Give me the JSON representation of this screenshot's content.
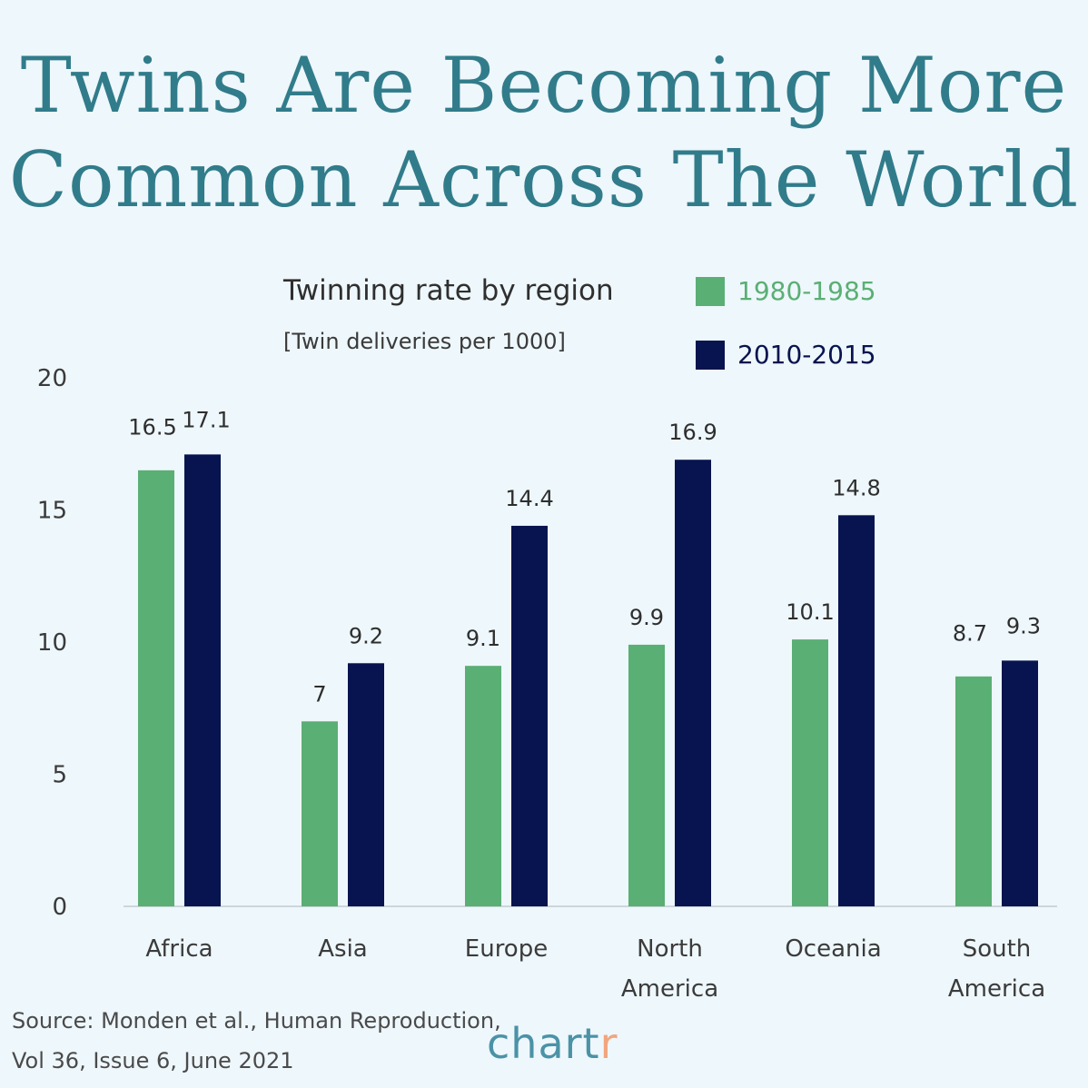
{
  "title": {
    "line1": "Twins Are Becoming More",
    "line2": "Common Across The World"
  },
  "subtitle": "Twinning rate by region",
  "unit_label": "[Twin deliveries per 1000]",
  "legend": [
    {
      "label": "1980-1985",
      "color": "#5aaf74"
    },
    {
      "label": "2010-2015",
      "color": "#07144f"
    }
  ],
  "source": {
    "line1": "Source: Monden et al., Human Reproduction,",
    "line2": "Vol 36, Issue 6, June 2021"
  },
  "logo": {
    "main": "chart",
    "accent": "r"
  },
  "chart_data": {
    "type": "bar",
    "categories": [
      [
        "Africa"
      ],
      [
        "Asia"
      ],
      [
        "Europe"
      ],
      [
        "North",
        "America"
      ],
      [
        "Oceania"
      ],
      [
        "South",
        "America"
      ]
    ],
    "series": [
      {
        "name": "1980-1985",
        "color": "#5aaf74",
        "values": [
          16.5,
          7,
          9.1,
          9.9,
          10.1,
          8.7
        ]
      },
      {
        "name": "2010-2015",
        "color": "#07144f",
        "values": [
          17.1,
          9.2,
          14.4,
          16.9,
          14.8,
          9.3
        ]
      }
    ],
    "value_labels": [
      [
        "16.5",
        "7",
        "9.1",
        "9.9",
        "10.1",
        "8.7"
      ],
      [
        "17.1",
        "9.2",
        "14.4",
        "16.9",
        "14.8",
        "9.3"
      ]
    ],
    "yticks": [
      0,
      5,
      10,
      15,
      20
    ],
    "ylim": [
      0,
      20
    ],
    "grid": false,
    "legend_position": "top-right"
  }
}
